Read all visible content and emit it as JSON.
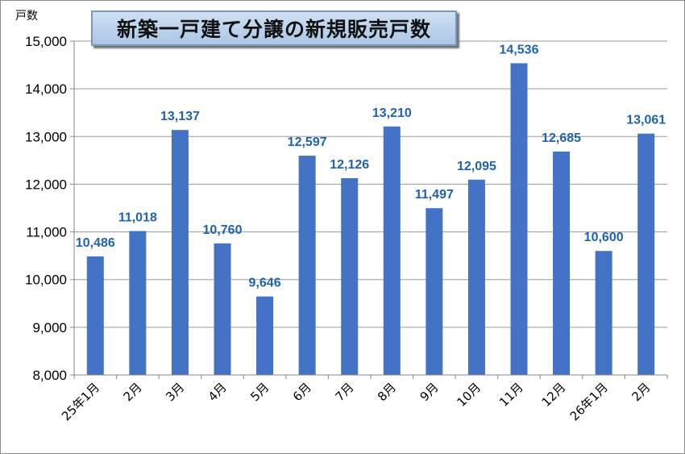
{
  "chart_data": {
    "type": "bar",
    "title": "新築一戸建て分譲の新規販売戸数",
    "ylabel": "戸数",
    "xlabel": "",
    "categories": [
      "25年1月",
      "2月",
      "3月",
      "4月",
      "5月",
      "6月",
      "7月",
      "8月",
      "9月",
      "10月",
      "11月",
      "12月",
      "26年1月",
      "2月"
    ],
    "values": [
      10486,
      11018,
      13137,
      10760,
      9646,
      12597,
      12126,
      13210,
      11497,
      12095,
      14536,
      12685,
      10600,
      13061
    ],
    "value_labels": [
      "10,486",
      "11,018",
      "13,137",
      "10,760",
      "9,646",
      "12,597",
      "12,126",
      "13,210",
      "11,497",
      "12,095",
      "14,536",
      "12,685",
      "10,600",
      "13,061"
    ],
    "ylim": [
      8000,
      15000
    ],
    "yticks": [
      8000,
      9000,
      10000,
      11000,
      12000,
      13000,
      14000,
      15000
    ],
    "ytick_labels": [
      "8,000",
      "9,000",
      "10,000",
      "11,000",
      "12,000",
      "13,000",
      "14,000",
      "15,000"
    ],
    "grid": true,
    "legend": "none",
    "colors": {
      "bar": "#4472c4",
      "label": "#1f63b0",
      "grid": "#9a9a9a"
    }
  }
}
